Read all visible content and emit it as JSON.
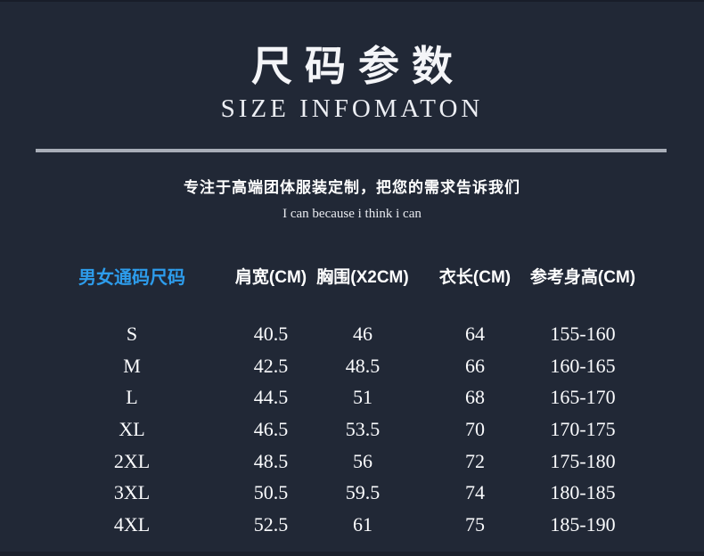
{
  "page": {
    "background_color": "#212836",
    "divider_color": "#a9aeb8",
    "accent_color": "#2d9ceb",
    "text_color": "#ffffff"
  },
  "header": {
    "title": "尺码参数",
    "subtitle": "SIZE INFOMATON"
  },
  "tagline": {
    "main": "专注于高端团体服装定制，把您的需求告诉我们",
    "sub": "I can because i think i can"
  },
  "table": {
    "size_header": "男女通码尺码",
    "size_header_color": "#2d9ceb",
    "columns": [
      "肩宽(CM)",
      "胸围(X2CM)",
      "衣长(CM)",
      "参考身高(CM)"
    ],
    "rows": [
      {
        "size": "S",
        "values": [
          "40.5",
          "46",
          "64",
          "155-160"
        ]
      },
      {
        "size": "M",
        "values": [
          "42.5",
          "48.5",
          "66",
          "160-165"
        ]
      },
      {
        "size": "L",
        "values": [
          "44.5",
          "51",
          "68",
          "165-170"
        ]
      },
      {
        "size": "XL",
        "values": [
          "46.5",
          "53.5",
          "70",
          "170-175"
        ]
      },
      {
        "size": "2XL",
        "values": [
          "48.5",
          "56",
          "72",
          "175-180"
        ]
      },
      {
        "size": "3XL",
        "values": [
          "50.5",
          "59.5",
          "74",
          "180-185"
        ]
      },
      {
        "size": "4XL",
        "values": [
          "52.5",
          "61",
          "75",
          "185-190"
        ]
      }
    ]
  },
  "chart_data": {
    "type": "table",
    "title": "尺码参数 / SIZE INFOMATON",
    "columns": [
      "男女通码尺码",
      "肩宽(CM)",
      "胸围(X2CM)",
      "衣长(CM)",
      "参考身高(CM)"
    ],
    "rows": [
      [
        "S",
        "40.5",
        "46",
        "64",
        "155-160"
      ],
      [
        "M",
        "42.5",
        "48.5",
        "66",
        "160-165"
      ],
      [
        "L",
        "44.5",
        "51",
        "68",
        "165-170"
      ],
      [
        "XL",
        "46.5",
        "53.5",
        "70",
        "170-175"
      ],
      [
        "2XL",
        "48.5",
        "56",
        "72",
        "175-180"
      ],
      [
        "3XL",
        "50.5",
        "59.5",
        "74",
        "180-185"
      ],
      [
        "4XL",
        "52.5",
        "61",
        "75",
        "185-190"
      ]
    ]
  }
}
